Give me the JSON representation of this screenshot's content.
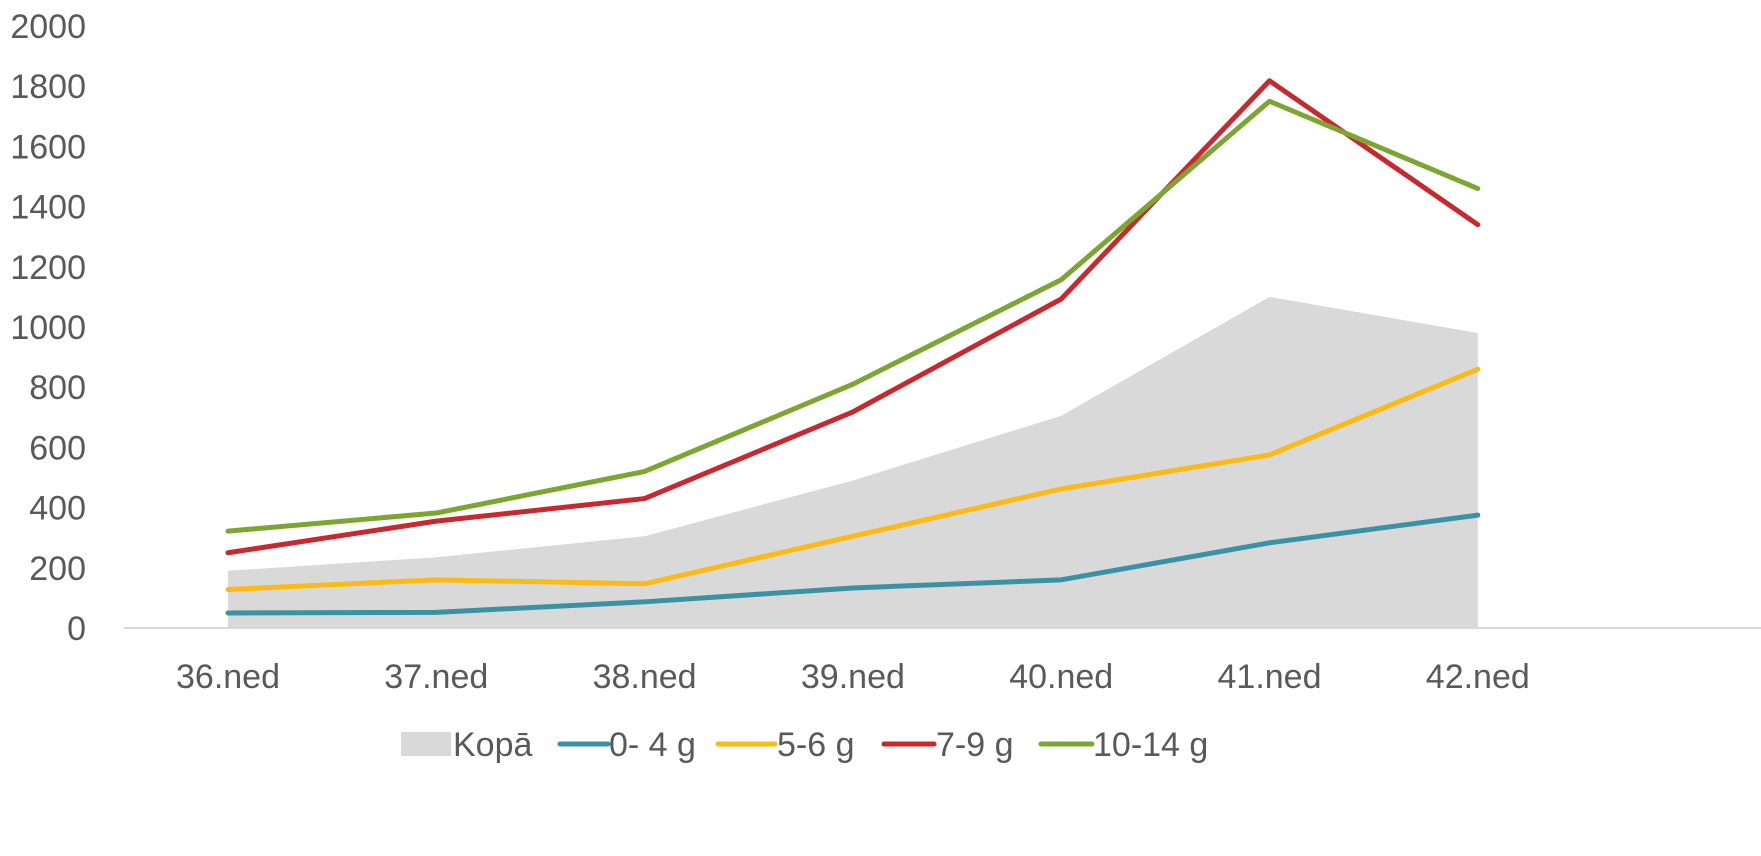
{
  "chart_data": {
    "type": "line",
    "title": "",
    "xlabel": "",
    "ylabel": "",
    "categories": [
      "36.ned",
      "37.ned",
      "38.ned",
      "39.ned",
      "40.ned",
      "41.ned",
      "42.ned"
    ],
    "ylim": [
      0,
      2000
    ],
    "yticks": [
      0,
      200,
      400,
      600,
      800,
      1000,
      1200,
      1400,
      1600,
      1800,
      2000
    ],
    "grid": false,
    "legend_position": "bottom",
    "series": [
      {
        "name": "Kopā",
        "type": "area",
        "color": "#d9d9d9",
        "values": [
          190,
          235,
          305,
          490,
          705,
          1100,
          980
        ]
      },
      {
        "name": "0- 4 g",
        "type": "line",
        "color": "#3a93a5",
        "values": [
          50,
          52,
          87,
          133,
          160,
          283,
          375
        ]
      },
      {
        "name": "5-6 g",
        "type": "line",
        "color": "#fbbb14",
        "values": [
          128,
          160,
          147,
          305,
          462,
          575,
          860
        ]
      },
      {
        "name": "7-9 g",
        "type": "line",
        "color": "#c8292f",
        "values": [
          250,
          355,
          430,
          718,
          1093,
          1818,
          1340
        ]
      },
      {
        "name": "10-14 g",
        "type": "line",
        "color": "#7ba631",
        "values": [
          322,
          382,
          520,
          810,
          1157,
          1750,
          1460
        ]
      }
    ]
  }
}
